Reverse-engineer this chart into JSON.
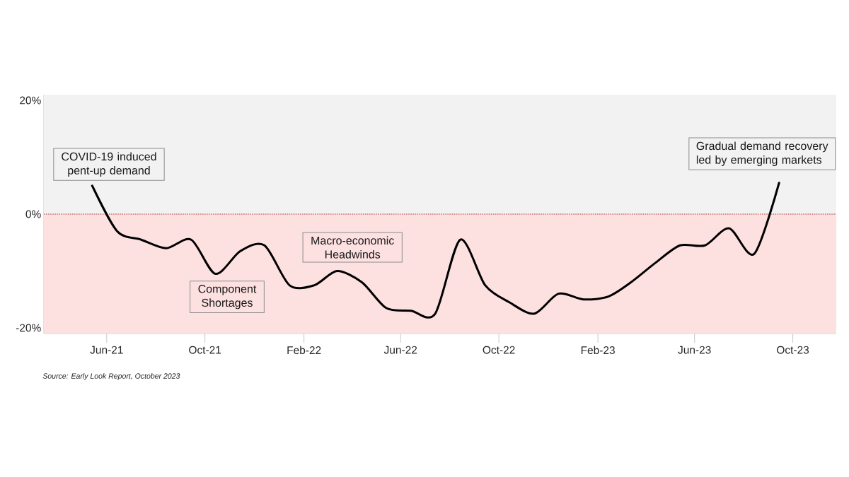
{
  "chart_data": {
    "type": "line",
    "x": [
      "2021-05-14",
      "2021-06-14",
      "2021-07-14",
      "2021-08-14",
      "2021-09-14",
      "2021-10-14",
      "2021-11-14",
      "2021-12-14",
      "2022-01-14",
      "2022-02-14",
      "2022-03-14",
      "2022-04-14",
      "2022-05-14",
      "2022-06-14",
      "2022-07-14",
      "2022-08-14",
      "2022-09-14",
      "2022-10-14",
      "2022-11-14",
      "2022-12-14",
      "2023-01-14",
      "2023-02-14",
      "2023-03-14",
      "2023-04-14",
      "2023-05-14",
      "2023-06-14",
      "2023-07-14",
      "2023-08-14",
      "2023-09-14"
    ],
    "series": [
      {
        "color": "#000000",
        "values": [
          5,
          -3,
          -4.5,
          -6,
          -4.5,
          -10.5,
          -6.5,
          -5.5,
          -12.5,
          -12.5,
          -10,
          -12,
          -16.5,
          -17,
          -17.5,
          -4.5,
          -12.5,
          -15.5,
          -17.5,
          -14,
          -15,
          -14.5,
          -12,
          -8.5,
          -5.5,
          -5.5,
          -2.5,
          -7,
          5.5
        ]
      }
    ],
    "xlim": [
      "2021-03-15",
      "2023-11-24"
    ],
    "ylim": [
      -21,
      21
    ],
    "xticks": [
      {
        "value": "2021-06",
        "label": "Jun-21"
      },
      {
        "value": "2021-10",
        "label": "Oct-21"
      },
      {
        "value": "2022-02",
        "label": "Feb-22"
      },
      {
        "value": "2022-06",
        "label": "Jun-22"
      },
      {
        "value": "2022-10",
        "label": "Oct-22"
      },
      {
        "value": "2023-02",
        "label": "Feb-23"
      },
      {
        "value": "2023-06",
        "label": "Jun-23"
      },
      {
        "value": "2023-10",
        "label": "Oct-23"
      }
    ],
    "yticks": [
      {
        "value": 20,
        "label": "20%"
      },
      {
        "value": 0,
        "label": "0%"
      },
      {
        "value": -20,
        "label": "-20%"
      }
    ],
    "bands": [
      {
        "axis": "y",
        "from": 0,
        "to": 21,
        "color": "#f2f2f2"
      },
      {
        "axis": "y",
        "from": -21,
        "to": 0,
        "color": "#fde0e0"
      }
    ],
    "ref_lines": [
      {
        "axis": "y",
        "value": 0,
        "color": "#a33a3a",
        "line_style": "dotted"
      }
    ],
    "annotations": [
      "COVID-19 induced pent-up demand",
      "Component Shortages",
      "Macro-economic Headwinds",
      "Gradual demand recovery led by emerging markets",
      "Source: Early Look Report, October 2023"
    ]
  }
}
